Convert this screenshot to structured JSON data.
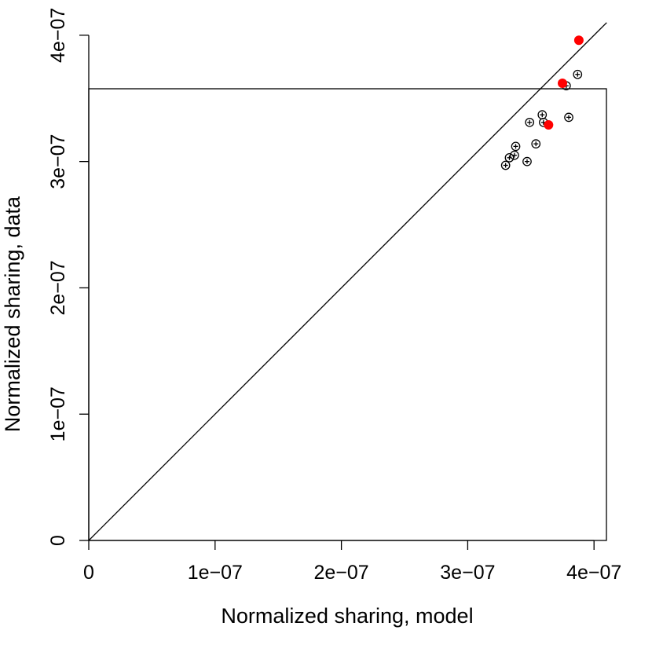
{
  "chart_data": {
    "type": "scatter",
    "xlabel": "Normalized sharing, model",
    "ylabel": "Normalized sharing, data",
    "xlim": [
      0,
      4.1e-07
    ],
    "ylim": [
      0,
      4.1e-07
    ],
    "x_ticks": [
      {
        "value": 0,
        "label": "0"
      },
      {
        "value": 1e-07,
        "label": "1e−07"
      },
      {
        "value": 2e-07,
        "label": "2e−07"
      },
      {
        "value": 3e-07,
        "label": "3e−07"
      },
      {
        "value": 4e-07,
        "label": "4e−07"
      }
    ],
    "y_ticks": [
      {
        "value": 0,
        "label": "0"
      },
      {
        "value": 1e-07,
        "label": "1e−07"
      },
      {
        "value": 2e-07,
        "label": "2e−07"
      },
      {
        "value": 3e-07,
        "label": "3e−07"
      },
      {
        "value": 4e-07,
        "label": "4e−07"
      }
    ],
    "reference_line": {
      "type": "identity",
      "from": [
        0,
        0
      ],
      "to": [
        4.1e-07,
        4.1e-07
      ],
      "color": "#000000"
    },
    "grid": false,
    "series": [
      {
        "marker": "circle-plus",
        "color": "#000000",
        "points": [
          {
            "x": 3.3e-07,
            "y": 2.97e-07
          },
          {
            "x": 3.33e-07,
            "y": 3.03e-07
          },
          {
            "x": 3.37e-07,
            "y": 3.05e-07
          },
          {
            "x": 3.38e-07,
            "y": 3.12e-07
          },
          {
            "x": 3.47e-07,
            "y": 3e-07
          },
          {
            "x": 3.49e-07,
            "y": 3.31e-07
          },
          {
            "x": 3.54e-07,
            "y": 3.14e-07
          },
          {
            "x": 3.59e-07,
            "y": 3.37e-07
          },
          {
            "x": 3.6e-07,
            "y": 3.31e-07
          },
          {
            "x": 3.78e-07,
            "y": 3.6e-07
          },
          {
            "x": 3.8e-07,
            "y": 3.35e-07
          },
          {
            "x": 3.87e-07,
            "y": 3.69e-07
          }
        ]
      },
      {
        "marker": "filled-circle",
        "color": "#ff0000",
        "points": [
          {
            "x": 3.64e-07,
            "y": 3.29e-07
          },
          {
            "x": 3.75e-07,
            "y": 3.62e-07
          },
          {
            "x": 3.88e-07,
            "y": 3.96e-07
          }
        ]
      }
    ]
  }
}
